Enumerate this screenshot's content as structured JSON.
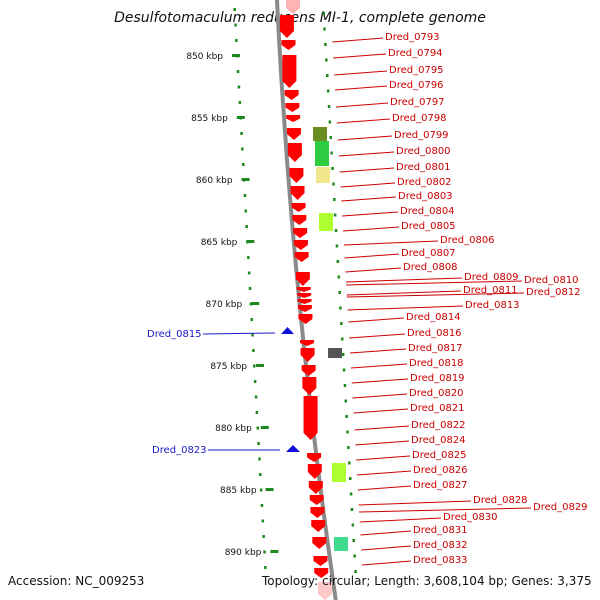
{
  "title": "Desulfotomaculum reducens MI-1, complete genome",
  "accession": "Accession: NC_009253",
  "topology": "Topology: circular; Length: 3,608,104 bp; Genes: 3,375",
  "colors": {
    "backbone": "#8a8a8a",
    "forward_gene": "#ff0000",
    "reverse_gene": "#1010dd",
    "right_label": "#cc0000",
    "left_label": "#1a1acc",
    "tick": "#1e8a1e"
  },
  "scale": {
    "unit": "kbp",
    "ticks": [
      "850 kbp",
      "855 kbp",
      "860 kbp",
      "865 kbp",
      "870 kbp",
      "875 kbp",
      "880 kbp",
      "885 kbp",
      "890 kbp"
    ]
  },
  "left_labels": [
    "Dred_0815",
    "Dred_0823"
  ],
  "right_labels": [
    "Dred_0793",
    "Dred_0794",
    "Dred_0795",
    "Dred_0796",
    "Dred_0797",
    "Dred_0798",
    "Dred_0799",
    "Dred_0800",
    "Dred_0801",
    "Dred_0802",
    "Dred_0803",
    "Dred_0804",
    "Dred_0805",
    "Dred_0806",
    "Dred_0807",
    "Dred_0808",
    "Dred_0809",
    "Dred_0810",
    "Dred_0811",
    "Dred_0812",
    "Dred_0813",
    "Dred_0814",
    "Dred_0816",
    "Dred_0817",
    "Dred_0818",
    "Dred_0819",
    "Dred_0820",
    "Dred_0821",
    "Dred_0822",
    "Dred_0824",
    "Dred_0825",
    "Dred_0826",
    "Dred_0827",
    "Dred_0828",
    "Dred_0829",
    "Dred_0830",
    "Dred_0831",
    "Dred_0832",
    "Dred_0833"
  ],
  "feature_colors": [
    "#6b8e23",
    "#2ecc40",
    "#f0e68c",
    "#adff2f",
    "#555555",
    "#adff2f",
    "#3cdc8c"
  ]
}
